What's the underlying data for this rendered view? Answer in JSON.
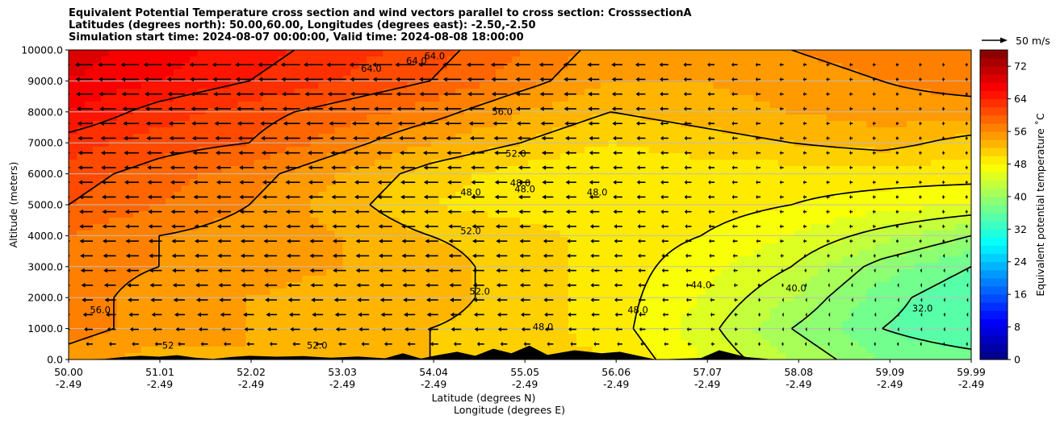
{
  "title_lines": [
    "Equivalent Potential Temperature cross section and wind vectors parallel to cross section: CrosssectionA",
    "Latitudes (degrees north): 50.00,60.00, Longitudes (degrees east): -2.50,-2.50",
    "Simulation start time: 2024-08-07 00:00:00, Valid time: 2024-08-08 18:00:00"
  ],
  "colors": {
    "contour_line": "#000000",
    "terrain": "#000000",
    "grid": "#bdbdbd",
    "vector": "#000000"
  },
  "chart_data": {
    "type": "heatmap",
    "xlabel": "Latitude (degrees N)",
    "xlabel2": "Longitude (degrees E)",
    "ylabel": "Altitude (meters)",
    "x_range": [
      50.0,
      59.99
    ],
    "ylim": [
      0,
      10000
    ],
    "x_ticks": [
      {
        "value": 50.0,
        "lat": "50.00",
        "lon": "-2.49"
      },
      {
        "value": 51.01,
        "lat": "51.01",
        "lon": "-2.49"
      },
      {
        "value": 52.02,
        "lat": "52.02",
        "lon": "-2.49"
      },
      {
        "value": 53.03,
        "lat": "53.03",
        "lon": "-2.49"
      },
      {
        "value": 54.04,
        "lat": "54.04",
        "lon": "-2.49"
      },
      {
        "value": 55.05,
        "lat": "55.05",
        "lon": "-2.49"
      },
      {
        "value": 56.06,
        "lat": "56.06",
        "lon": "-2.49"
      },
      {
        "value": 57.07,
        "lat": "57.07",
        "lon": "-2.49"
      },
      {
        "value": 58.08,
        "lat": "58.08",
        "lon": "-2.49"
      },
      {
        "value": 59.09,
        "lat": "59.09",
        "lon": "-2.49"
      },
      {
        "value": 59.99,
        "lat": "59.99",
        "lon": "-2.49"
      }
    ],
    "y_ticks": [
      {
        "value": 0,
        "label": "0.0"
      },
      {
        "value": 1000,
        "label": "1000.0"
      },
      {
        "value": 2000,
        "label": "2000.0"
      },
      {
        "value": 3000,
        "label": "3000.0"
      },
      {
        "value": 4000,
        "label": "4000.0"
      },
      {
        "value": 5000,
        "label": "5000.0"
      },
      {
        "value": 6000,
        "label": "6000.0"
      },
      {
        "value": 7000,
        "label": "7000.0"
      },
      {
        "value": 8000,
        "label": "8000.0"
      },
      {
        "value": 9000,
        "label": "9000.0"
      },
      {
        "value": 10000,
        "label": "10000.0"
      }
    ],
    "grid": "horizontal",
    "colorbar": {
      "label": "Equivalent potential temperature ˚C",
      "min": 0,
      "max": 76,
      "step": 2,
      "ticks": [
        0,
        8,
        16,
        24,
        32,
        40,
        48,
        56,
        64,
        72
      ],
      "tick_labels": [
        "0",
        "8",
        "16",
        "24",
        "32",
        "40",
        "48",
        "56",
        "64",
        "72"
      ]
    },
    "vector_key": {
      "label": "50 m/s",
      "speed": 50
    },
    "field_samples": {
      "x": [
        50.0,
        51.0,
        52.0,
        53.0,
        54.0,
        55.0,
        56.0,
        57.0,
        58.0,
        59.0,
        59.99
      ],
      "y": [
        0,
        1000,
        2000,
        3000,
        4000,
        5000,
        6000,
        7000,
        8000,
        9000,
        10000
      ],
      "values": [
        [
          55,
          53,
          54,
          53,
          52,
          51,
          50,
          46,
          42,
          38,
          37
        ],
        [
          57,
          55,
          54,
          53,
          52,
          51,
          49,
          45,
          40,
          36,
          34
        ],
        [
          57,
          55,
          54,
          53,
          53,
          51,
          49,
          46,
          42,
          37,
          34
        ],
        [
          57,
          56,
          55,
          54,
          53,
          51,
          49,
          47,
          44,
          39,
          36
        ],
        [
          58,
          56,
          55,
          54,
          52,
          51,
          49,
          48,
          46,
          43,
          40
        ],
        [
          60,
          58,
          56,
          53,
          50,
          49,
          48,
          49,
          48,
          47,
          46
        ],
        [
          61,
          59,
          57,
          54,
          51,
          49,
          48,
          49,
          49,
          49,
          49
        ],
        [
          63,
          61,
          60,
          57,
          54,
          52,
          50,
          51,
          52,
          53,
          51
        ],
        [
          66,
          63,
          61,
          59,
          57,
          54,
          52,
          53,
          54,
          55,
          55
        ],
        [
          68,
          66,
          64,
          62,
          60,
          57,
          54,
          54,
          55,
          56,
          57
        ],
        [
          69,
          67,
          65,
          63,
          61,
          58,
          55,
          55,
          56,
          57,
          57
        ]
      ]
    },
    "wind_u_samples": {
      "y": [
        0,
        1000,
        2000,
        3000,
        4000,
        5000,
        6000,
        7000,
        8000,
        9000,
        10000
      ],
      "x": [
        50.0,
        52.0,
        54.0,
        56.0,
        58.0,
        59.99
      ],
      "u": [
        [
          -4,
          -4,
          -4,
          -3,
          -2,
          -2
        ],
        [
          -7,
          -8,
          -9,
          -6,
          -1,
          -1
        ],
        [
          -9,
          -10,
          -10,
          -7,
          -1,
          -1
        ],
        [
          -10,
          -11,
          -11,
          -7,
          -2,
          -1
        ],
        [
          -11,
          -11,
          -11,
          -7,
          -3,
          -2
        ],
        [
          -11,
          -12,
          -12,
          -8,
          -3,
          -2
        ],
        [
          -12,
          -12,
          -12,
          -8,
          -3,
          -2
        ],
        [
          -12,
          -13,
          -13,
          -8,
          -3,
          -2
        ],
        [
          -13,
          -14,
          -15,
          -9,
          -3,
          -2
        ],
        [
          -14,
          -15,
          -16,
          -9,
          -3,
          -2
        ],
        [
          -15,
          -16,
          -17,
          -10,
          -3,
          -2
        ]
      ]
    },
    "terrain_profile": {
      "x": [
        50.0,
        50.4,
        50.6,
        50.8,
        51.0,
        51.2,
        51.4,
        51.6,
        51.8,
        52.0,
        52.3,
        52.6,
        52.9,
        53.2,
        53.5,
        53.7,
        53.9,
        54.1,
        54.3,
        54.5,
        54.7,
        54.9,
        55.1,
        55.3,
        55.6,
        55.9,
        56.1,
        56.5,
        57.0,
        57.2,
        57.5,
        57.8,
        58.2,
        59.0,
        59.99
      ],
      "h": [
        0,
        20,
        80,
        120,
        90,
        140,
        60,
        20,
        80,
        120,
        90,
        110,
        60,
        100,
        40,
        200,
        30,
        150,
        250,
        120,
        350,
        200,
        450,
        150,
        300,
        200,
        250,
        0,
        50,
        300,
        80,
        0,
        0,
        0,
        0
      ]
    },
    "contour_labels": [
      {
        "text": "64.0",
        "x": 53.35,
        "y": 9300
      },
      {
        "text": "64.0",
        "x": 53.85,
        "y": 9550
      },
      {
        "text": "64.0",
        "x": 54.05,
        "y": 9700
      },
      {
        "text": "56.0",
        "x": 54.8,
        "y": 7900
      },
      {
        "text": "52.0",
        "x": 54.95,
        "y": 6550
      },
      {
        "text": "48.0",
        "x": 54.45,
        "y": 5300
      },
      {
        "text": "48.0",
        "x": 55.0,
        "y": 5600
      },
      {
        "text": "48.0",
        "x": 55.05,
        "y": 5400
      },
      {
        "text": "48.0",
        "x": 55.85,
        "y": 5300
      },
      {
        "text": "52.0",
        "x": 54.45,
        "y": 4050
      },
      {
        "text": "52.0",
        "x": 54.55,
        "y": 2100
      },
      {
        "text": "56.0",
        "x": 50.35,
        "y": 1500
      },
      {
        "text": "52",
        "x": 51.1,
        "y": 350
      },
      {
        "text": "52.0",
        "x": 52.75,
        "y": 350
      },
      {
        "text": "48.0",
        "x": 55.25,
        "y": 950
      },
      {
        "text": "48.0",
        "x": 56.3,
        "y": 1500
      },
      {
        "text": "44.0",
        "x": 57.0,
        "y": 2300
      },
      {
        "text": "40.0",
        "x": 58.05,
        "y": 2200
      },
      {
        "text": "32.0",
        "x": 59.45,
        "y": 1550
      }
    ]
  }
}
